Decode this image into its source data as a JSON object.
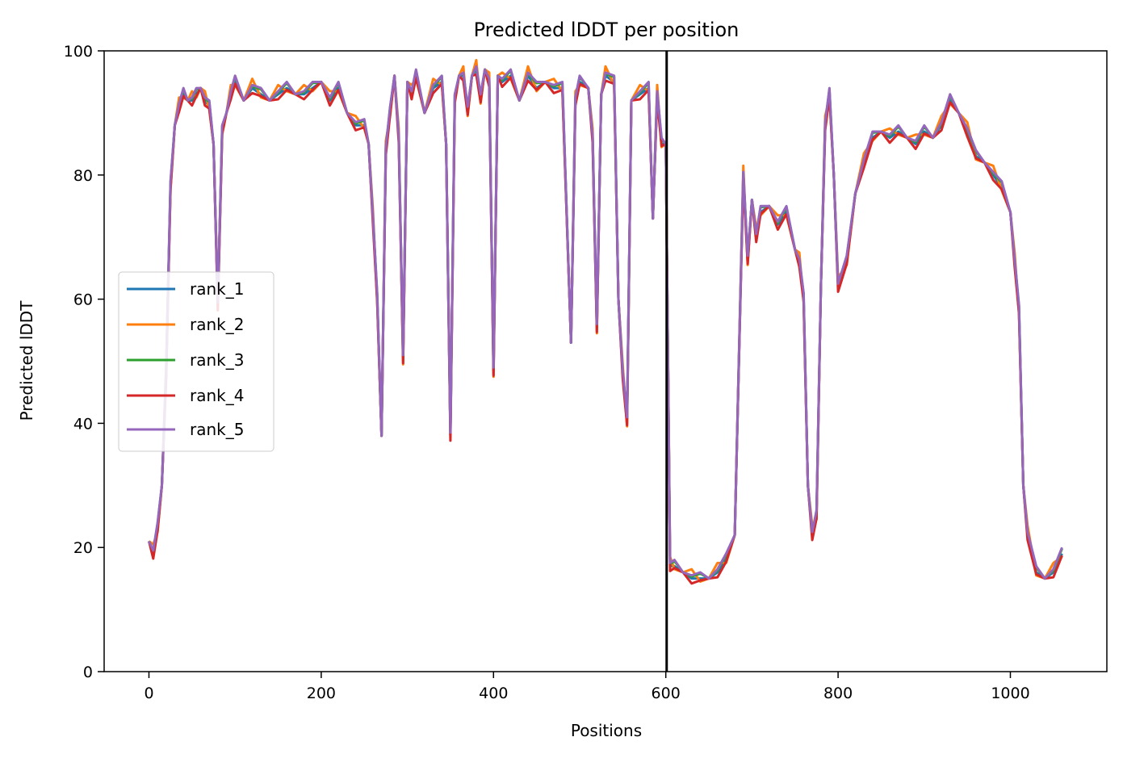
{
  "chart_data": {
    "type": "line",
    "title": "Predicted lDDT per position",
    "xlabel": "Positions",
    "ylabel": "Predicted lDDT",
    "xlim": [
      -52,
      1112
    ],
    "ylim": [
      0,
      100
    ],
    "xticks": [
      0,
      200,
      400,
      600,
      800,
      1000
    ],
    "yticks": [
      0,
      20,
      40,
      60,
      80,
      100
    ],
    "grid": false,
    "legend_position": "center-left",
    "chain_break": 601,
    "chain_break_color": "#000000",
    "series": [
      {
        "name": "rank_1",
        "color": "#1f77b4"
      },
      {
        "name": "rank_2",
        "color": "#ff7f0e"
      },
      {
        "name": "rank_3",
        "color": "#2ca02c"
      },
      {
        "name": "rank_4",
        "color": "#d62728"
      },
      {
        "name": "rank_5",
        "color": "#9467bd"
      }
    ],
    "x": [
      0,
      5,
      10,
      15,
      20,
      25,
      30,
      35,
      40,
      45,
      50,
      55,
      60,
      65,
      70,
      75,
      80,
      85,
      90,
      95,
      100,
      110,
      120,
      130,
      140,
      150,
      160,
      170,
      180,
      190,
      200,
      210,
      220,
      230,
      240,
      250,
      255,
      260,
      265,
      270,
      275,
      280,
      285,
      290,
      295,
      300,
      305,
      310,
      320,
      330,
      340,
      345,
      350,
      355,
      360,
      365,
      370,
      375,
      380,
      385,
      390,
      395,
      400,
      405,
      410,
      420,
      430,
      440,
      450,
      460,
      470,
      480,
      490,
      495,
      500,
      510,
      515,
      520,
      525,
      530,
      540,
      545,
      550,
      555,
      560,
      570,
      580,
      585,
      590,
      595,
      600,
      605,
      610,
      620,
      630,
      640,
      650,
      660,
      670,
      680,
      690,
      695,
      700,
      705,
      710,
      720,
      730,
      740,
      750,
      755,
      760,
      765,
      770,
      775,
      780,
      785,
      790,
      795,
      800,
      810,
      820,
      830,
      840,
      850,
      860,
      870,
      880,
      890,
      900,
      910,
      920,
      930,
      940,
      950,
      960,
      970,
      980,
      990,
      1000,
      1005,
      1010,
      1015,
      1020,
      1030,
      1040,
      1050,
      1060
    ],
    "base_values": [
      21,
      19,
      23,
      30,
      48,
      78,
      88,
      91,
      93,
      92,
      92,
      93,
      94,
      92,
      91,
      85,
      59,
      87,
      90,
      93,
      95,
      92,
      94,
      93,
      92,
      93,
      94,
      93,
      93,
      94,
      95,
      92,
      94,
      90,
      88,
      88,
      85,
      73,
      60,
      38,
      84,
      90,
      96,
      86,
      50,
      95,
      93,
      96,
      90,
      94,
      95,
      85,
      38,
      92,
      96,
      96,
      90,
      96,
      97,
      92,
      97,
      95,
      48,
      96,
      95,
      96,
      92,
      96,
      94,
      95,
      94,
      94,
      53,
      92,
      95,
      94,
      86,
      55,
      93,
      96,
      95,
      60,
      48,
      40,
      92,
      93,
      94,
      73,
      93,
      85,
      85,
      17,
      17,
      16,
      15,
      15,
      15,
      16,
      18,
      22,
      80,
      66,
      76,
      70,
      74,
      75,
      72,
      74,
      68,
      66,
      60,
      30,
      22,
      25,
      62,
      88,
      93,
      80,
      62,
      66,
      77,
      82,
      86,
      87,
      86,
      87,
      86,
      85,
      87,
      86,
      88,
      92,
      90,
      87,
      83,
      82,
      80,
      78,
      74,
      66,
      58,
      30,
      22,
      16,
      15,
      16,
      19
    ],
    "offsets": [
      [
        0,
        0,
        0,
        0,
        0
      ],
      [
        0,
        1.5,
        0.3,
        -0.8,
        0.5
      ],
      [
        0,
        -0.5,
        0.8,
        -0.3,
        1
      ]
    ]
  },
  "legend": {
    "items": [
      {
        "label": "rank_1"
      },
      {
        "label": "rank_2"
      },
      {
        "label": "rank_3"
      },
      {
        "label": "rank_4"
      },
      {
        "label": "rank_5"
      }
    ]
  }
}
